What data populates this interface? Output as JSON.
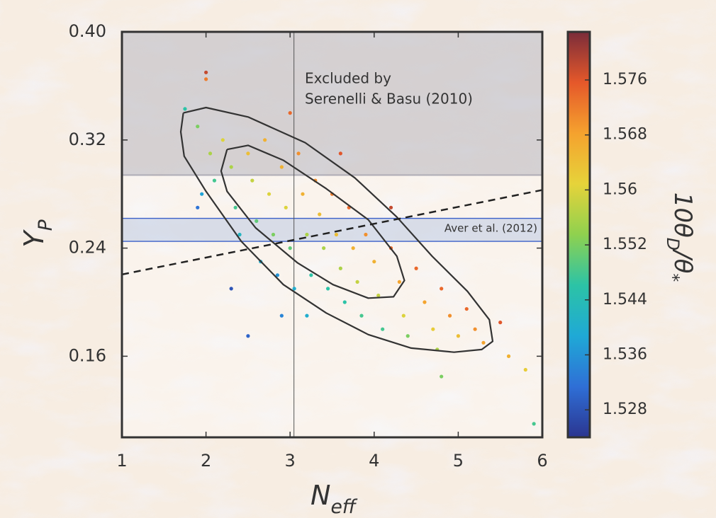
{
  "chart_data": {
    "type": "scatter",
    "xlabel": {
      "main": "N",
      "sub": "eff"
    },
    "ylabel": {
      "main": "Y",
      "sub": "P"
    },
    "colorbar_label": [
      "10θ",
      "D",
      "/θ",
      "*"
    ],
    "xlim": [
      1,
      6
    ],
    "xticks": [
      1,
      2,
      3,
      4,
      5,
      6
    ],
    "ylim": [
      0.1,
      0.4
    ],
    "yticks": [
      0.16,
      0.24,
      0.32,
      {
        "value": 0.4,
        "label": "0.40"
      }
    ],
    "clim": [
      1.524,
      1.583
    ],
    "cticks": [
      1.528,
      1.536,
      1.544,
      1.552,
      1.56,
      1.568,
      1.576
    ],
    "colormap": [
      "#2b3590",
      "#2f6fd6",
      "#1fa9d6",
      "#2cc3a6",
      "#8fd14f",
      "#e6d33a",
      "#f5a22e",
      "#e5582a",
      "#7a2c3a"
    ],
    "x": [
      1.75,
      1.9,
      2.0,
      2.05,
      2.1,
      1.95,
      2.2,
      2.3,
      2.35,
      2.4,
      2.5,
      2.55,
      2.6,
      2.65,
      2.7,
      2.75,
      2.8,
      2.85,
      2.9,
      2.95,
      3.0,
      3.05,
      3.1,
      3.15,
      3.2,
      3.25,
      3.3,
      3.35,
      3.4,
      3.45,
      3.5,
      3.55,
      3.6,
      3.65,
      3.7,
      3.75,
      3.8,
      3.85,
      3.9,
      4.0,
      4.05,
      4.1,
      4.2,
      4.3,
      4.35,
      4.4,
      4.5,
      4.6,
      4.7,
      4.75,
      4.8,
      4.9,
      5.0,
      5.1,
      5.2,
      5.3,
      5.5,
      5.6,
      5.8,
      4.2,
      3.6,
      3.0,
      2.5,
      1.9,
      2.3,
      3.2,
      2.9,
      2.0,
      4.8,
      5.9
    ],
    "y": [
      0.343,
      0.33,
      0.365,
      0.31,
      0.29,
      0.28,
      0.32,
      0.3,
      0.27,
      0.25,
      0.31,
      0.29,
      0.26,
      0.23,
      0.32,
      0.28,
      0.25,
      0.22,
      0.3,
      0.27,
      0.24,
      0.21,
      0.31,
      0.28,
      0.25,
      0.22,
      0.29,
      0.265,
      0.24,
      0.21,
      0.28,
      0.25,
      0.225,
      0.2,
      0.27,
      0.24,
      0.215,
      0.19,
      0.25,
      0.23,
      0.205,
      0.18,
      0.24,
      0.215,
      0.19,
      0.175,
      0.225,
      0.2,
      0.18,
      0.165,
      0.21,
      0.19,
      0.175,
      0.195,
      0.18,
      0.17,
      0.185,
      0.16,
      0.15,
      0.27,
      0.31,
      0.34,
      0.175,
      0.27,
      0.21,
      0.19,
      0.19,
      0.37,
      0.145,
      0.11
    ],
    "c": [
      1.546,
      1.552,
      1.572,
      1.556,
      1.548,
      1.538,
      1.56,
      1.556,
      1.548,
      1.542,
      1.564,
      1.558,
      1.55,
      1.54,
      1.566,
      1.56,
      1.552,
      1.536,
      1.566,
      1.56,
      1.55,
      1.54,
      1.57,
      1.566,
      1.556,
      1.546,
      1.57,
      1.564,
      1.556,
      1.546,
      1.572,
      1.564,
      1.556,
      1.546,
      1.574,
      1.566,
      1.558,
      1.548,
      1.57,
      1.566,
      1.558,
      1.548,
      1.574,
      1.568,
      1.56,
      1.552,
      1.574,
      1.568,
      1.562,
      1.556,
      1.574,
      1.57,
      1.564,
      1.574,
      1.57,
      1.568,
      1.576,
      1.566,
      1.562,
      1.578,
      1.576,
      1.574,
      1.53,
      1.532,
      1.528,
      1.54,
      1.534,
      1.578,
      1.552,
      1.548
    ],
    "contours": [
      {
        "x": [
          1.73,
          2.0,
          2.5,
          3.18,
          3.77,
          4.27,
          4.69,
          5.11,
          5.37,
          5.41,
          5.28,
          4.95,
          4.44,
          3.93,
          3.43,
          2.92,
          2.42,
          2.0,
          1.74,
          1.7,
          1.73
        ],
        "y": [
          0.34,
          0.344,
          0.337,
          0.318,
          0.292,
          0.263,
          0.234,
          0.208,
          0.187,
          0.171,
          0.165,
          0.163,
          0.166,
          0.176,
          0.192,
          0.213,
          0.245,
          0.282,
          0.308,
          0.326,
          0.34
        ]
      },
      {
        "x": [
          2.25,
          2.5,
          2.92,
          3.43,
          3.93,
          4.27,
          4.36,
          4.23,
          3.93,
          3.51,
          3.09,
          2.59,
          2.25,
          2.18,
          2.25
        ],
        "y": [
          0.313,
          0.316,
          0.305,
          0.284,
          0.261,
          0.234,
          0.216,
          0.204,
          0.203,
          0.213,
          0.229,
          0.255,
          0.282,
          0.297,
          0.313
        ]
      }
    ],
    "excluded_region": {
      "ymin": 0.294,
      "label": [
        "Excluded by",
        "Serenelli & Basu (2010)"
      ]
    },
    "aver_band": {
      "ymin": 0.245,
      "ymax": 0.262,
      "label": "Aver et al. (2012)"
    },
    "reference_line": {
      "x": [
        1,
        6
      ],
      "y": [
        0.2205,
        0.283
      ]
    },
    "vline": 3.046
  }
}
